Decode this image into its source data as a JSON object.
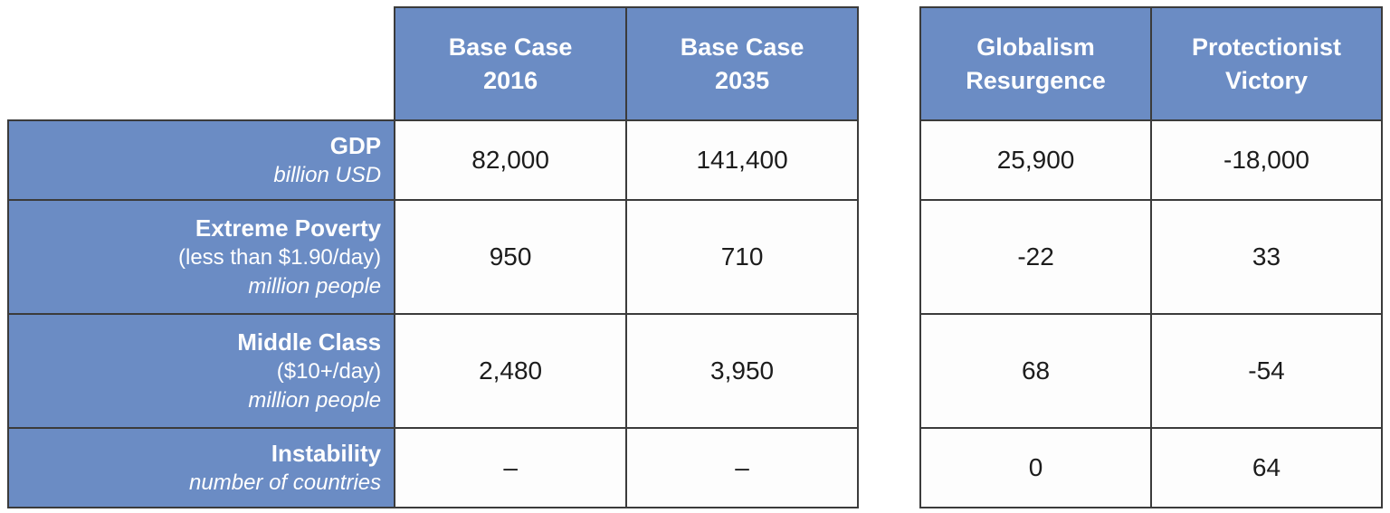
{
  "chart_data": {
    "type": "table",
    "title": "",
    "layout": "two side-by-side panels sharing the same rows; left panel has row labels plus two base-case columns, right panel has two scenario columns",
    "columns": [
      {
        "line1": "Base Case",
        "line2": "2016"
      },
      {
        "line1": "Base Case",
        "line2": "2035"
      },
      {
        "line1": "Globalism",
        "line2": "Resurgence"
      },
      {
        "line1": "Protectionist",
        "line2": "Victory"
      }
    ],
    "rows": [
      {
        "title": "GDP",
        "detail": "",
        "unit": "billion USD",
        "values": [
          "82,000",
          "141,400",
          "25,900",
          "-18,000"
        ]
      },
      {
        "title": "Extreme Poverty",
        "detail": "(less than $1.90/day)",
        "unit": "million people",
        "values": [
          "950",
          "710",
          "-22",
          "33"
        ]
      },
      {
        "title": "Middle Class",
        "detail": "($10+/day)",
        "unit": "million people",
        "values": [
          "2,480",
          "3,950",
          "68",
          "-54"
        ]
      },
      {
        "title": "Instability",
        "detail": "",
        "unit": "number of countries",
        "values": [
          "–",
          "–",
          "0",
          "64"
        ]
      }
    ],
    "colors": {
      "header_bg": "#6b8cc4",
      "header_text": "#ffffff",
      "border": "#3b3b3b",
      "value_text": "#1c1c1c",
      "value_bg": "#fdfdfd"
    }
  }
}
